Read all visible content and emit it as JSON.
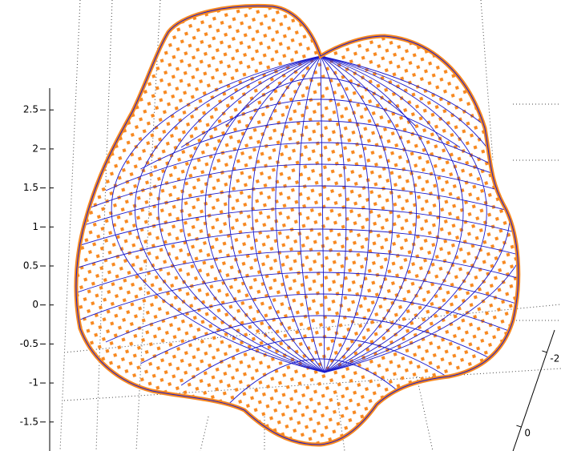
{
  "chart_data": {
    "type": "surface3d",
    "zlim": [
      -1.8,
      2.8
    ],
    "zticks": [
      2.5,
      2,
      1.5,
      1,
      0.5,
      0,
      -0.5,
      -1,
      -1.5
    ],
    "xlim": [
      -2.6,
      0.9
    ],
    "xticks": [
      -2,
      0
    ]
  }
}
